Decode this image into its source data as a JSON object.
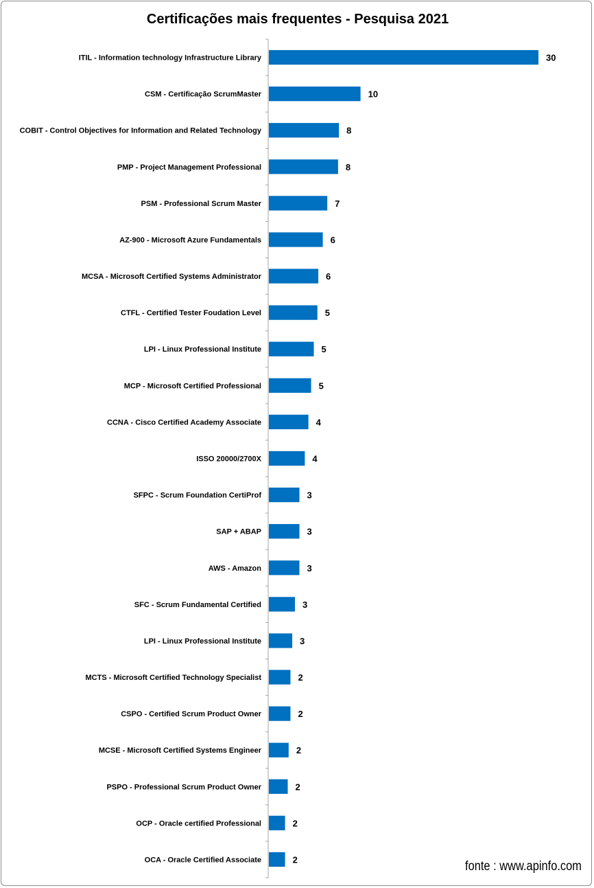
{
  "chart_data": {
    "type": "bar",
    "orientation": "horizontal",
    "title": "Certificações mais frequentes - Pesquisa 2021",
    "source_note": "fonte : www.apinfo.com",
    "bar_color": "#0070C0",
    "grid": false,
    "legend": "none",
    "xlim": [
      0,
      30
    ],
    "categories": [
      "ITIL - Information technology Infrastructure Library",
      "CSM - Certificação ScrumMaster",
      "COBIT - Control Objectives for Information and Related Technology",
      "PMP - Project Management Professional",
      "PSM - Professional Scrum Master",
      "AZ-900 - Microsoft Azure Fundamentals",
      "MCSA - Microsoft Certified Systems Administrator",
      "CTFL - Certified Tester Foudation Level",
      "LPI - Linux Professional Institute",
      "MCP - Microsoft Certified Professional",
      "CCNA - Cisco Certified Academy Associate",
      "ISSO 20000/2700X",
      "SFPC - Scrum Foundation CertiProf",
      "SAP + ABAP",
      "AWS - Amazon",
      "SFC - Scrum Fundamental Certified",
      "LPI - Linux Professional Institute",
      "MCTS - Microsoft Certified Technology Specialist",
      "CSPO - Certified Scrum Product Owner",
      "MCSE - Microsoft Certified Systems Engineer",
      "PSPO - Professional Scrum Product Owner",
      "OCP - Oracle certified Professional",
      "OCA - Oracle Certified Associate"
    ],
    "values": [
      30,
      10,
      8,
      8,
      7,
      6,
      6,
      5,
      5,
      5,
      4,
      4,
      3,
      3,
      3,
      3,
      3,
      2,
      2,
      2,
      2,
      2,
      2
    ],
    "bar_lengths": [
      30,
      10.2,
      7.8,
      7.7,
      6.5,
      6.0,
      5.5,
      5.4,
      5.0,
      4.7,
      4.4,
      4.0,
      3.4,
      3.4,
      3.4,
      2.9,
      2.6,
      2.4,
      2.4,
      2.2,
      2.1,
      1.8,
      1.8
    ]
  }
}
